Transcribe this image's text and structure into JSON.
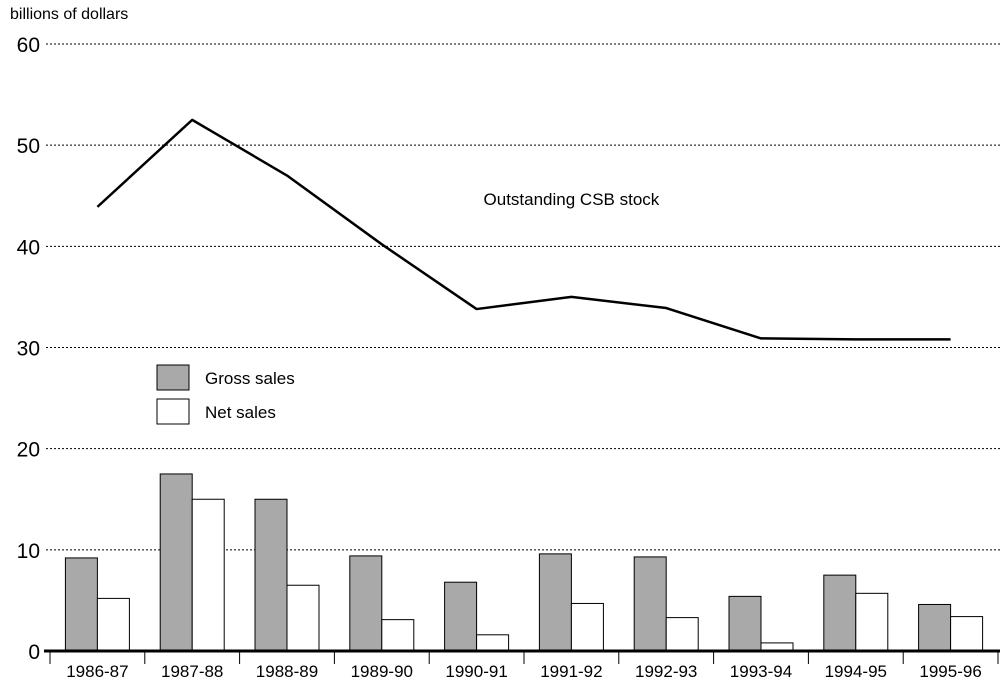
{
  "chart_data": {
    "type": "bar",
    "ylabel": "billions of dollars",
    "categories": [
      "1986-87",
      "1987-88",
      "1988-89",
      "1989-90",
      "1990-91",
      "1991-92",
      "1992-93",
      "1993-94",
      "1994-95",
      "1995-96"
    ],
    "ylim": [
      0,
      60
    ],
    "yticks": [
      0,
      10,
      20,
      30,
      40,
      50,
      60
    ],
    "grid": "horizontal-dotted",
    "legend_placement": "middle-left",
    "series": [
      {
        "name": "Gross sales",
        "kind": "bar",
        "color": "#a9a9a9",
        "values": [
          9.2,
          17.5,
          15.0,
          9.4,
          6.8,
          9.6,
          9.3,
          5.4,
          7.5,
          4.6
        ]
      },
      {
        "name": "Net sales",
        "kind": "bar",
        "color": "#ffffff",
        "values": [
          5.2,
          15.0,
          6.5,
          3.1,
          1.6,
          4.7,
          3.3,
          0.8,
          5.7,
          3.4
        ]
      },
      {
        "name": "Outstanding CSB stock",
        "kind": "line",
        "color": "#000000",
        "values": [
          43.9,
          52.5,
          47.0,
          40.2,
          33.8,
          35.0,
          33.9,
          30.9,
          30.8,
          30.8
        ]
      }
    ],
    "annotations": [
      {
        "text": "Outstanding CSB stock",
        "x_category": "1991-92",
        "y": 44.7
      }
    ]
  }
}
